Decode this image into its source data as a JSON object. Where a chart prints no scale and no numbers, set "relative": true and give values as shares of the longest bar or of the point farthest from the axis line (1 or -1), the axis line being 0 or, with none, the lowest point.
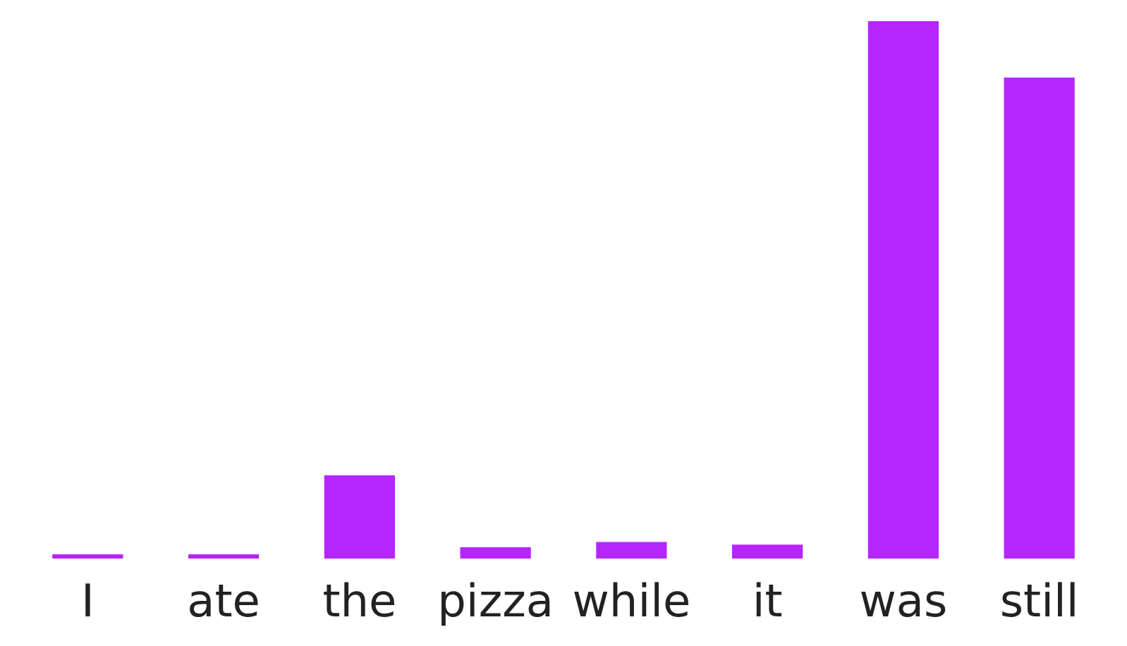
{
  "chart_data": {
    "type": "bar",
    "relative": true,
    "categories": [
      "I",
      "ate",
      "the",
      "pizza",
      "while",
      "it",
      "was",
      "still"
    ],
    "values": [
      0.008,
      0.008,
      0.155,
      0.021,
      0.031,
      0.026,
      1,
      0.895
    ],
    "color": "#b526ff"
  }
}
